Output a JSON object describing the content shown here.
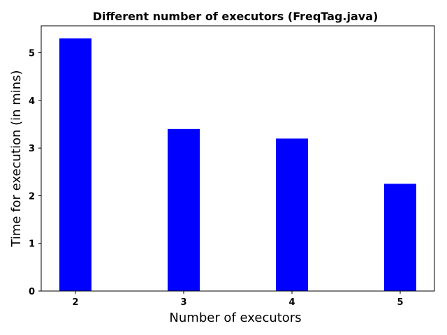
{
  "chart_data": {
    "type": "bar",
    "title": "Different number of executors (FreqTag.java)",
    "xlabel": "Number of executors",
    "ylabel": "Time for execution (in mins)",
    "categories": [
      "2",
      "3",
      "4",
      "5"
    ],
    "values": [
      5.3,
      3.4,
      3.2,
      2.25
    ],
    "ylim": [
      0,
      5.565
    ],
    "yticks": [
      "0",
      "1",
      "2",
      "3",
      "4",
      "5"
    ],
    "grid": false,
    "bar_color": "#0000ff"
  }
}
